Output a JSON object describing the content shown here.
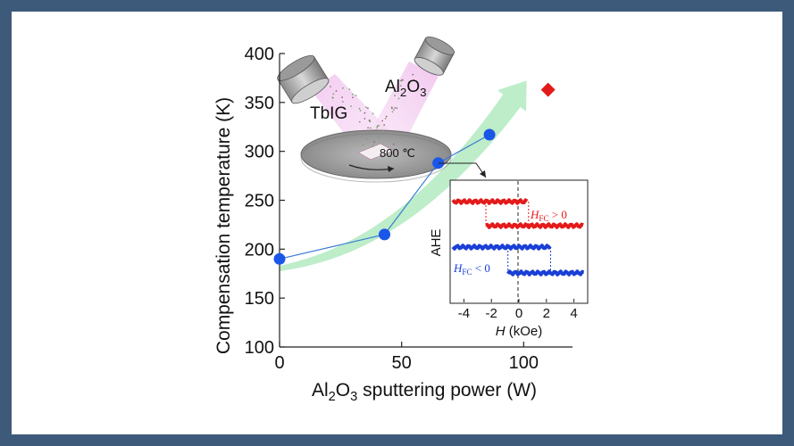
{
  "chart_data": {
    "type": "scatter",
    "xlabel": "sputtering power (W)",
    "xlabel_prefix": "Al",
    "xlabel_sub1": "2",
    "xlabel_mid": "O",
    "xlabel_sub2": "3",
    "ylabel": "Compensation temperature (K)",
    "xlim": [
      0,
      120
    ],
    "ylim": [
      100,
      400
    ],
    "x_ticks": [
      "0",
      "50",
      "100"
    ],
    "y_ticks": [
      "100",
      "150",
      "200",
      "250",
      "300",
      "350",
      "400"
    ],
    "grid": false,
    "series": [
      {
        "x": [
          0,
          43,
          65,
          86
        ],
        "y": [
          190,
          215,
          288,
          317
        ],
        "color": "#1a56e8",
        "line_color": "#3a7bd5",
        "marker": "circle"
      },
      {
        "x": [
          110
        ],
        "y": [
          363
        ],
        "color": "#e41a1a",
        "marker": "diamond"
      }
    ],
    "trend_arrow_color": "#b9ecc6",
    "inset": {
      "ylabel": "AHE",
      "xlabel_var": "H",
      "xlabel_unit": "(kOe)",
      "xlim": [
        -5,
        5
      ],
      "x_ticks": [
        "-4",
        "-2",
        "0",
        "2",
        "4"
      ],
      "annotations": [
        {
          "text_var": "H",
          "text_sub": "FC",
          "text_rel": "> 0",
          "color": "#e41a1a"
        },
        {
          "text_var": "H",
          "text_sub": "FC",
          "text_rel": "< 0",
          "color": "#1a3fd6"
        }
      ],
      "loops": [
        {
          "color": "#e41a1a",
          "high_left_to": 0.7,
          "low_right_from": -2.4
        },
        {
          "color": "#1a3fd6",
          "high_left_to": 2.3,
          "low_right_from": -0.8
        }
      ]
    },
    "schematic_labels": {
      "target1": "TbIG",
      "target2_prefix": "Al",
      "target2_sub1": "2",
      "target2_mid": "O",
      "target2_sub2": "3",
      "temperature": "800 ℃"
    }
  }
}
